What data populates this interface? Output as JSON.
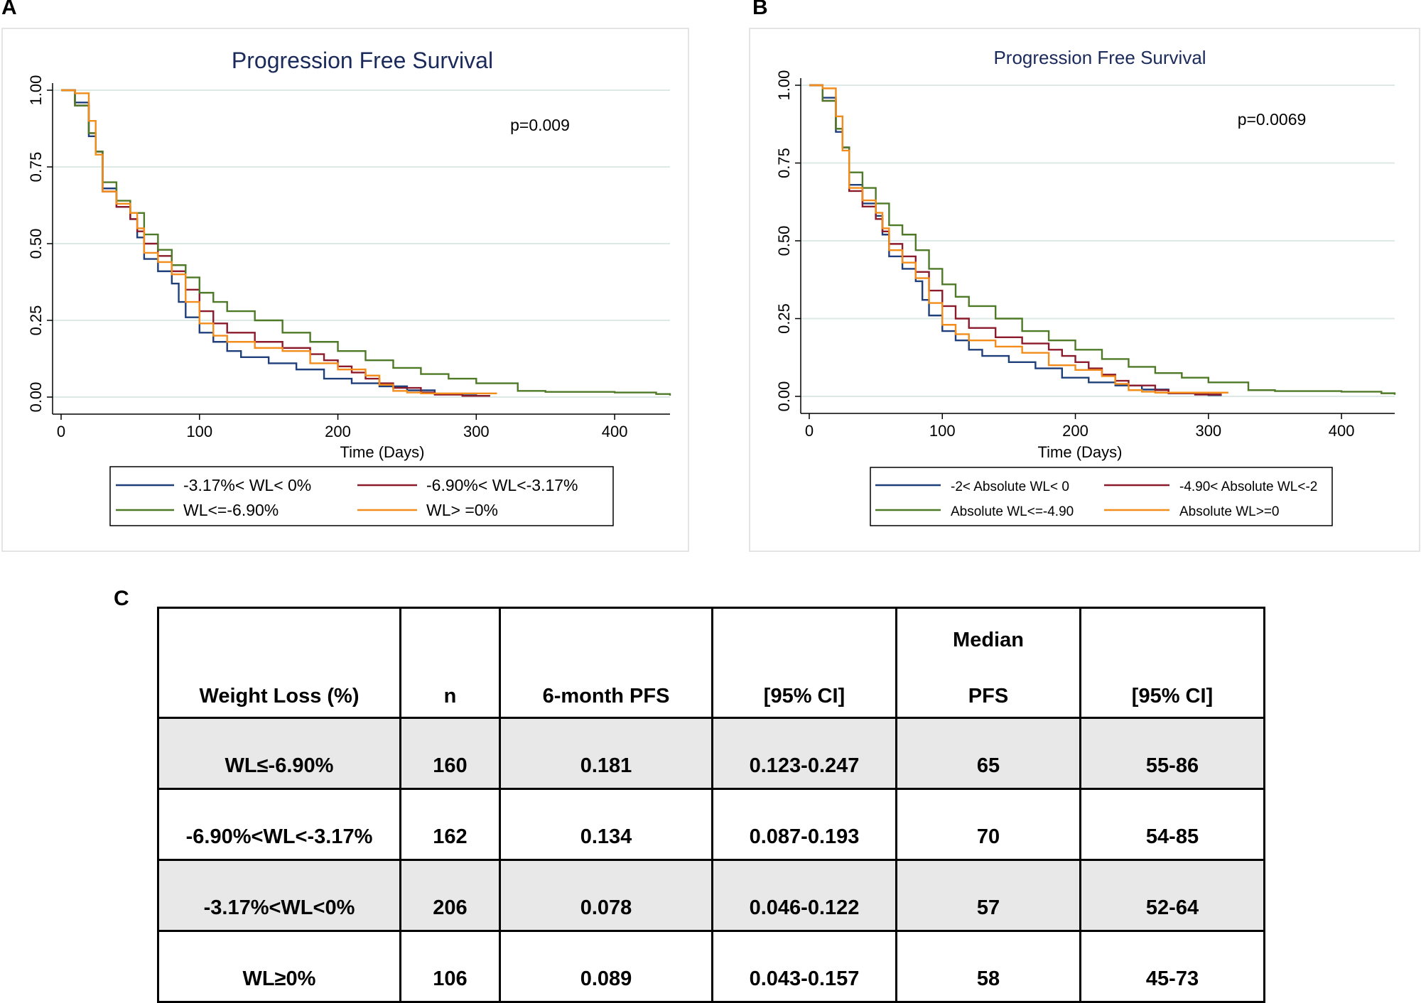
{
  "panels": {
    "a": "A",
    "b": "B",
    "c": "C"
  },
  "chart_data": [
    {
      "type": "line",
      "step": true,
      "title": "Progression Free Survival",
      "annotation": "p=0.009",
      "xlabel": "Time (Days)",
      "ylabel": "",
      "xlim": [
        0,
        440
      ],
      "ylim": [
        0,
        1
      ],
      "xticks": [
        "0",
        "100",
        "200",
        "300",
        "400"
      ],
      "yticks": [
        "0.00",
        "0.25",
        "0.50",
        "0.75",
        "1.00"
      ],
      "grid": true,
      "legend_position": "bottom",
      "series": [
        {
          "name": "-3.17%< WL< 0%",
          "color": "#1f3f7a",
          "x": [
            0,
            10,
            20,
            25,
            30,
            40,
            50,
            55,
            60,
            70,
            80,
            85,
            90,
            100,
            110,
            120,
            130,
            150,
            170,
            190,
            210,
            230,
            250,
            270,
            290,
            300,
            310
          ],
          "y": [
            1.0,
            0.96,
            0.85,
            0.8,
            0.68,
            0.62,
            0.58,
            0.52,
            0.45,
            0.41,
            0.37,
            0.31,
            0.26,
            0.21,
            0.18,
            0.15,
            0.13,
            0.11,
            0.09,
            0.06,
            0.045,
            0.035,
            0.022,
            0.01,
            0.006,
            0.004,
            0.004
          ]
        },
        {
          "name": "-6.90%< WL<-3.17%",
          "color": "#8b1a2b",
          "x": [
            0,
            10,
            20,
            25,
            30,
            40,
            50,
            55,
            60,
            70,
            80,
            90,
            100,
            110,
            120,
            140,
            160,
            180,
            190,
            200,
            210,
            220,
            230,
            240,
            260,
            270,
            290,
            300,
            310
          ],
          "y": [
            1.0,
            0.95,
            0.86,
            0.8,
            0.67,
            0.62,
            0.58,
            0.54,
            0.5,
            0.46,
            0.41,
            0.35,
            0.28,
            0.24,
            0.21,
            0.18,
            0.16,
            0.14,
            0.12,
            0.1,
            0.08,
            0.06,
            0.045,
            0.03,
            0.015,
            0.008,
            0.004,
            0.004,
            0.004
          ]
        },
        {
          "name": "WL<=-6.90%",
          "color": "#4e7a27",
          "x": [
            0,
            10,
            20,
            25,
            30,
            40,
            50,
            60,
            70,
            80,
            90,
            100,
            110,
            120,
            140,
            160,
            180,
            200,
            220,
            240,
            260,
            280,
            300,
            330,
            350,
            400,
            430,
            440
          ],
          "y": [
            1.0,
            0.95,
            0.86,
            0.8,
            0.7,
            0.64,
            0.6,
            0.53,
            0.48,
            0.43,
            0.39,
            0.34,
            0.31,
            0.28,
            0.25,
            0.21,
            0.18,
            0.15,
            0.12,
            0.095,
            0.075,
            0.06,
            0.045,
            0.02,
            0.017,
            0.015,
            0.01,
            0.005
          ]
        },
        {
          "name": "WL> =0%",
          "color": "#f28c1b",
          "x": [
            0,
            10,
            20,
            25,
            30,
            40,
            50,
            55,
            60,
            70,
            80,
            90,
            100,
            110,
            120,
            140,
            160,
            180,
            200,
            220,
            230,
            240,
            250,
            260,
            280,
            300,
            315
          ],
          "y": [
            1.0,
            0.99,
            0.9,
            0.79,
            0.67,
            0.63,
            0.6,
            0.55,
            0.47,
            0.44,
            0.4,
            0.31,
            0.24,
            0.2,
            0.18,
            0.16,
            0.15,
            0.11,
            0.09,
            0.07,
            0.04,
            0.02,
            0.015,
            0.012,
            0.012,
            0.012,
            0.012
          ]
        }
      ]
    },
    {
      "type": "line",
      "step": true,
      "title": "Progression Free Survival",
      "annotation": "p=0.0069",
      "xlabel": "Time (Days)",
      "ylabel": "",
      "xlim": [
        0,
        440
      ],
      "ylim": [
        0,
        1
      ],
      "xticks": [
        "0",
        "100",
        "200",
        "300",
        "400"
      ],
      "yticks": [
        "0.00",
        "0.25",
        "0.50",
        "0.75",
        "1.00"
      ],
      "grid": true,
      "legend_position": "bottom",
      "series": [
        {
          "name": "-2< Absolute WL< 0",
          "color": "#1f3f7a",
          "x": [
            0,
            10,
            20,
            25,
            30,
            40,
            50,
            55,
            60,
            70,
            80,
            85,
            90,
            100,
            110,
            120,
            130,
            150,
            170,
            190,
            210,
            230,
            250,
            270,
            290,
            300,
            310
          ],
          "y": [
            1.0,
            0.96,
            0.85,
            0.8,
            0.68,
            0.62,
            0.58,
            0.52,
            0.45,
            0.41,
            0.37,
            0.31,
            0.26,
            0.21,
            0.18,
            0.15,
            0.13,
            0.11,
            0.09,
            0.06,
            0.045,
            0.035,
            0.022,
            0.01,
            0.006,
            0.004,
            0.004
          ]
        },
        {
          "name": "-4.90< Absolute WL<-2",
          "color": "#8b1a2b",
          "x": [
            0,
            10,
            20,
            25,
            30,
            40,
            50,
            55,
            60,
            70,
            80,
            90,
            100,
            110,
            120,
            140,
            160,
            180,
            190,
            200,
            210,
            220,
            230,
            240,
            260,
            270,
            290,
            300,
            310
          ],
          "y": [
            1.0,
            0.95,
            0.86,
            0.8,
            0.66,
            0.61,
            0.57,
            0.53,
            0.49,
            0.45,
            0.4,
            0.34,
            0.29,
            0.25,
            0.22,
            0.19,
            0.17,
            0.15,
            0.13,
            0.11,
            0.09,
            0.07,
            0.05,
            0.035,
            0.02,
            0.01,
            0.006,
            0.006,
            0.006
          ]
        },
        {
          "name": "Absolute WL<=-4.90",
          "color": "#4e7a27",
          "x": [
            0,
            10,
            20,
            25,
            30,
            40,
            50,
            60,
            70,
            80,
            90,
            100,
            110,
            120,
            140,
            160,
            180,
            200,
            220,
            240,
            260,
            280,
            300,
            330,
            350,
            400,
            430,
            440
          ],
          "y": [
            1.0,
            0.95,
            0.86,
            0.8,
            0.72,
            0.67,
            0.62,
            0.55,
            0.52,
            0.47,
            0.41,
            0.36,
            0.32,
            0.29,
            0.25,
            0.21,
            0.18,
            0.15,
            0.12,
            0.095,
            0.075,
            0.06,
            0.045,
            0.02,
            0.017,
            0.015,
            0.01,
            0.005
          ]
        },
        {
          "name": "Absolute WL>=0",
          "color": "#f28c1b",
          "x": [
            0,
            10,
            20,
            25,
            30,
            40,
            50,
            55,
            60,
            70,
            80,
            90,
            100,
            110,
            120,
            140,
            160,
            180,
            200,
            220,
            230,
            240,
            250,
            260,
            280,
            300,
            315
          ],
          "y": [
            1.0,
            0.99,
            0.9,
            0.79,
            0.67,
            0.63,
            0.59,
            0.54,
            0.47,
            0.43,
            0.38,
            0.3,
            0.23,
            0.2,
            0.18,
            0.16,
            0.14,
            0.1,
            0.085,
            0.065,
            0.04,
            0.02,
            0.015,
            0.012,
            0.012,
            0.012,
            0.012
          ]
        }
      ]
    },
    {
      "type": "table",
      "columns": [
        "Weight Loss (%)",
        "n",
        "6-month PFS",
        "[95% CI]",
        "Median",
        "PFS",
        "[95% CI]"
      ],
      "header": {
        "weight_loss": "Weight Loss (%)",
        "n": "n",
        "pfs6": "6-month PFS",
        "ci1": "[95% CI]",
        "median_line1": "Median",
        "median_line2": "PFS",
        "ci2": "[95% CI]"
      },
      "rows": [
        {
          "group": "WL≤-6.90%",
          "n": "160",
          "pfs6": "0.181",
          "ci1": "0.123-0.247",
          "median": "65",
          "ci2": "55-86"
        },
        {
          "group": "-6.90%<WL<-3.17%",
          "n": "162",
          "pfs6": "0.134",
          "ci1": "0.087-0.193",
          "median": "70",
          "ci2": "54-85"
        },
        {
          "group": "-3.17%<WL<0%",
          "n": "206",
          "pfs6": "0.078",
          "ci1": "0.046-0.122",
          "median": "57",
          "ci2": "52-64"
        },
        {
          "group": "WL≥0%",
          "n": "106",
          "pfs6": "0.089",
          "ci1": "0.043-0.157",
          "median": "58",
          "ci2": "45-73"
        }
      ]
    }
  ]
}
